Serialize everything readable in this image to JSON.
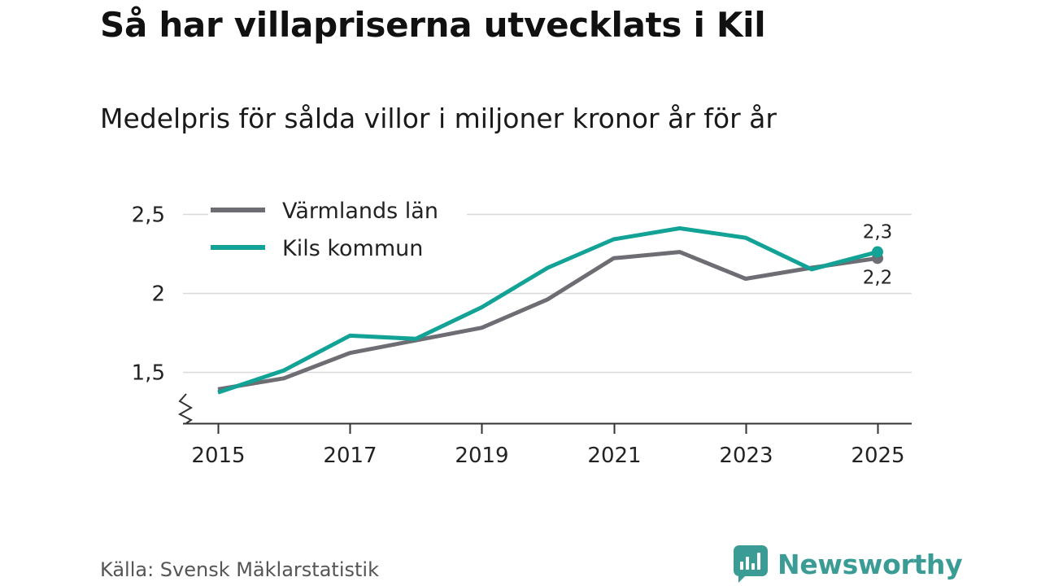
{
  "header": {
    "title": "Så har villapriserna utvecklats i Kil",
    "subtitle": "Medelpris för sålda villor i miljoner kronor år för år"
  },
  "footer": {
    "source": "Källa: Svensk Mäklarstatistik",
    "brand": "Newsworthy"
  },
  "icons": {
    "brand_icon": "newsworthy-logo-icon",
    "axis_break_icon": "axis-break-icon"
  },
  "chart_data": {
    "type": "line",
    "title": "Så har villapriserna utvecklats i Kil",
    "subtitle": "Medelpris för sålda villor i miljoner kronor år för år",
    "xlabel": "",
    "ylabel": "",
    "x": [
      2015,
      2016,
      2017,
      2018,
      2019,
      2020,
      2021,
      2022,
      2023,
      2024,
      2025
    ],
    "x_ticks": [
      2015,
      2017,
      2019,
      2021,
      2023,
      2025
    ],
    "x_tick_labels": [
      "2015",
      "2017",
      "2019",
      "2021",
      "2023",
      "2025"
    ],
    "y_ticks": [
      1.5,
      2,
      2.5
    ],
    "y_tick_labels": [
      "1,5",
      "2",
      "2,5"
    ],
    "xlim": [
      2014.8,
      2025.5
    ],
    "ylim": [
      1.2,
      2.5
    ],
    "grid": true,
    "legend_position": "top-left",
    "series": [
      {
        "name": "Värmlands län",
        "color": "#6e6d73",
        "values": [
          1.39,
          1.46,
          1.62,
          1.7,
          1.78,
          1.96,
          2.22,
          2.26,
          2.09,
          2.16,
          2.22
        ],
        "end_label": "2,2"
      },
      {
        "name": "Kils kommun",
        "color": "#13a396",
        "values": [
          1.37,
          1.51,
          1.73,
          1.71,
          1.91,
          2.16,
          2.34,
          2.41,
          2.35,
          2.15,
          2.26
        ],
        "end_label": "2,3"
      }
    ]
  }
}
